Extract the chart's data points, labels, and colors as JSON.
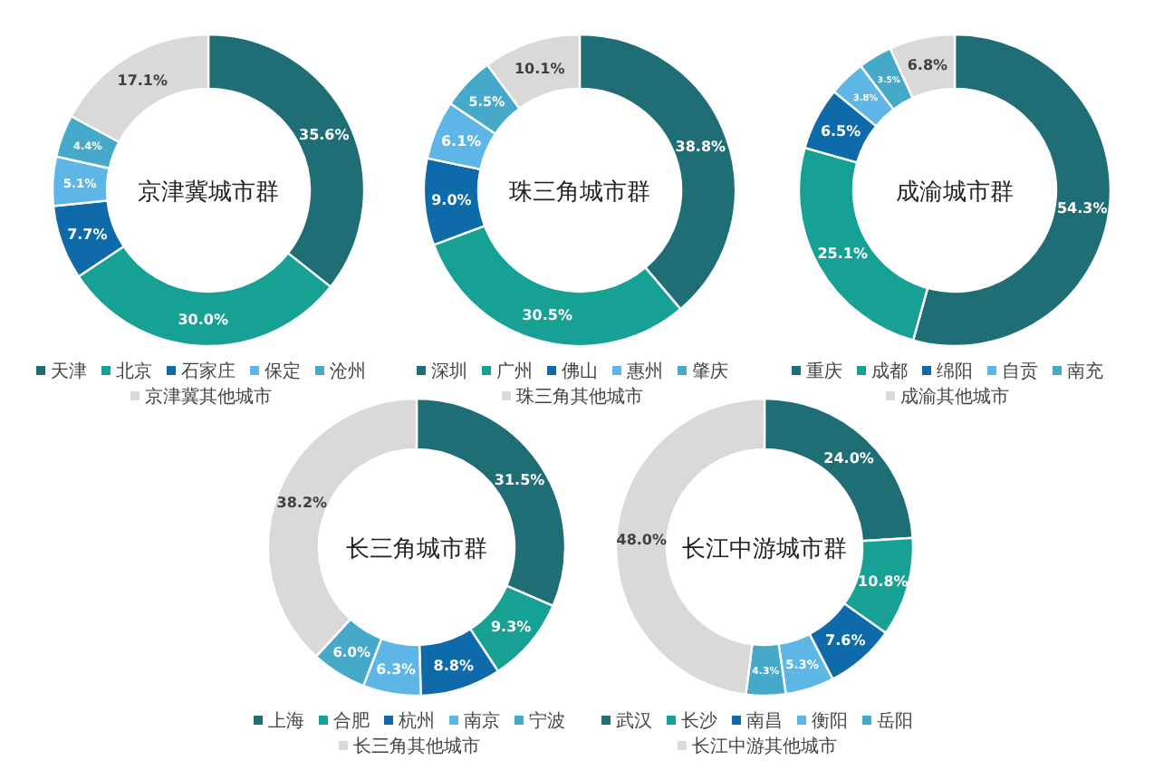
{
  "chart_data": [
    {
      "type": "donut",
      "title": "京津冀城市群",
      "categories": [
        "天津",
        "北京",
        "石家庄",
        "保定",
        "沧州",
        "京津冀其他城市"
      ],
      "values": [
        35.6,
        30.0,
        7.7,
        5.1,
        4.4,
        17.1
      ],
      "value_labels": [
        "35.6%",
        "30.0%",
        "7.7%",
        "5.1%",
        "4.4%",
        "17.1%"
      ],
      "colors": [
        "#1f6e75",
        "#17a195",
        "#0e6aa8",
        "#5db6e6",
        "#46a9c9",
        "#d9d9d9"
      ],
      "legend": "bottom"
    },
    {
      "type": "donut",
      "title": "珠三角城市群",
      "categories": [
        "深圳",
        "广州",
        "佛山",
        "惠州",
        "肇庆",
        "珠三角其他城市"
      ],
      "values": [
        38.8,
        30.5,
        9.0,
        6.1,
        5.5,
        10.1
      ],
      "value_labels": [
        "38.8%",
        "30.5%",
        "9.0%",
        "6.1%",
        "5.5%",
        "10.1%"
      ],
      "colors": [
        "#1f6e75",
        "#17a195",
        "#0e6aa8",
        "#5db6e6",
        "#46a9c9",
        "#d9d9d9"
      ],
      "legend": "bottom"
    },
    {
      "type": "donut",
      "title": "成渝城市群",
      "categories": [
        "重庆",
        "成都",
        "绵阳",
        "自贡",
        "南充",
        "成渝其他城市"
      ],
      "values": [
        54.3,
        25.1,
        6.5,
        3.8,
        3.5,
        6.8
      ],
      "value_labels": [
        "54.3%",
        "25.1%",
        "6.5%",
        "3.8%",
        "3.5%",
        "6.8%"
      ],
      "colors": [
        "#1f6e75",
        "#17a195",
        "#0e6aa8",
        "#5db6e6",
        "#46a9c9",
        "#d9d9d9"
      ],
      "legend": "bottom"
    },
    {
      "type": "donut",
      "title": "长三角城市群",
      "categories": [
        "上海",
        "合肥",
        "杭州",
        "南京",
        "宁波",
        "长三角其他城市"
      ],
      "values": [
        31.5,
        9.3,
        8.8,
        6.3,
        6.0,
        38.2
      ],
      "value_labels": [
        "31.5%",
        "9.3%",
        "8.8%",
        "6.3%",
        "6.0%",
        "38.2%"
      ],
      "colors": [
        "#1f6e75",
        "#17a195",
        "#0e6aa8",
        "#5db6e6",
        "#46a9c9",
        "#d9d9d9"
      ],
      "legend": "bottom"
    },
    {
      "type": "donut",
      "title": "长江中游城市群",
      "categories": [
        "武汉",
        "长沙",
        "南昌",
        "衡阳",
        "岳阳",
        "长江中游其他城市"
      ],
      "values": [
        24.0,
        10.8,
        7.6,
        5.3,
        4.3,
        48.0
      ],
      "value_labels": [
        "24.0%",
        "10.8%",
        "7.6%",
        "5.3%",
        "4.3%",
        "48.0%"
      ],
      "colors": [
        "#1f6e75",
        "#17a195",
        "#0e6aa8",
        "#5db6e6",
        "#46a9c9",
        "#d9d9d9"
      ],
      "legend": "bottom"
    }
  ]
}
